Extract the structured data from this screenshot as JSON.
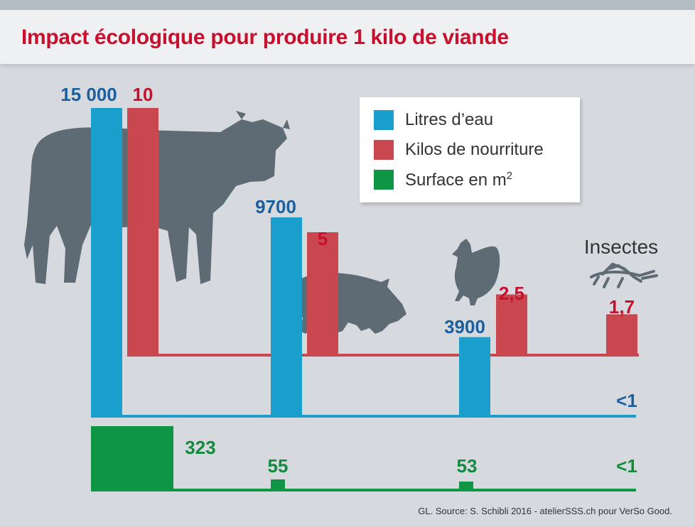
{
  "title": "Impact écologique pour produire 1 kilo de viande",
  "source": "GL. Source: S. Schibli 2016 - atelierSSS.ch pour VerSo Good.",
  "insect_label": "Insectes",
  "legend": [
    {
      "label": "Litres d’eau",
      "color": "#1a9fcc"
    },
    {
      "label": "Kilos de nourriture",
      "color": "#c94850"
    },
    {
      "label": "Surface en m",
      "sup": "2",
      "color": "#0f9644"
    }
  ],
  "colors": {
    "water": "#1a9fcc",
    "food": "#c94850",
    "area": "#0f9644",
    "water_label": "#1b5f9e",
    "food_label": "#c8102e",
    "area_label": "#138a3e",
    "silhouette": "#5e6b75"
  },
  "chart_data": {
    "type": "bar",
    "categories": [
      "Bœuf",
      "Porc",
      "Poulet",
      "Insectes"
    ],
    "series": [
      {
        "name": "Litres d’eau",
        "values": [
          15000,
          9700,
          3900,
          0.5
        ],
        "labels": [
          "15 000",
          "9700",
          "3900",
          "<1"
        ]
      },
      {
        "name": "Kilos de nourriture",
        "values": [
          10,
          5,
          2.5,
          1.7
        ],
        "labels": [
          "10",
          "5",
          "2,5",
          "1,7"
        ]
      },
      {
        "name": "Surface en m2",
        "values": [
          323,
          55,
          53,
          0.5
        ],
        "labels": [
          "323",
          "55",
          "53",
          "<1"
        ]
      }
    ]
  }
}
